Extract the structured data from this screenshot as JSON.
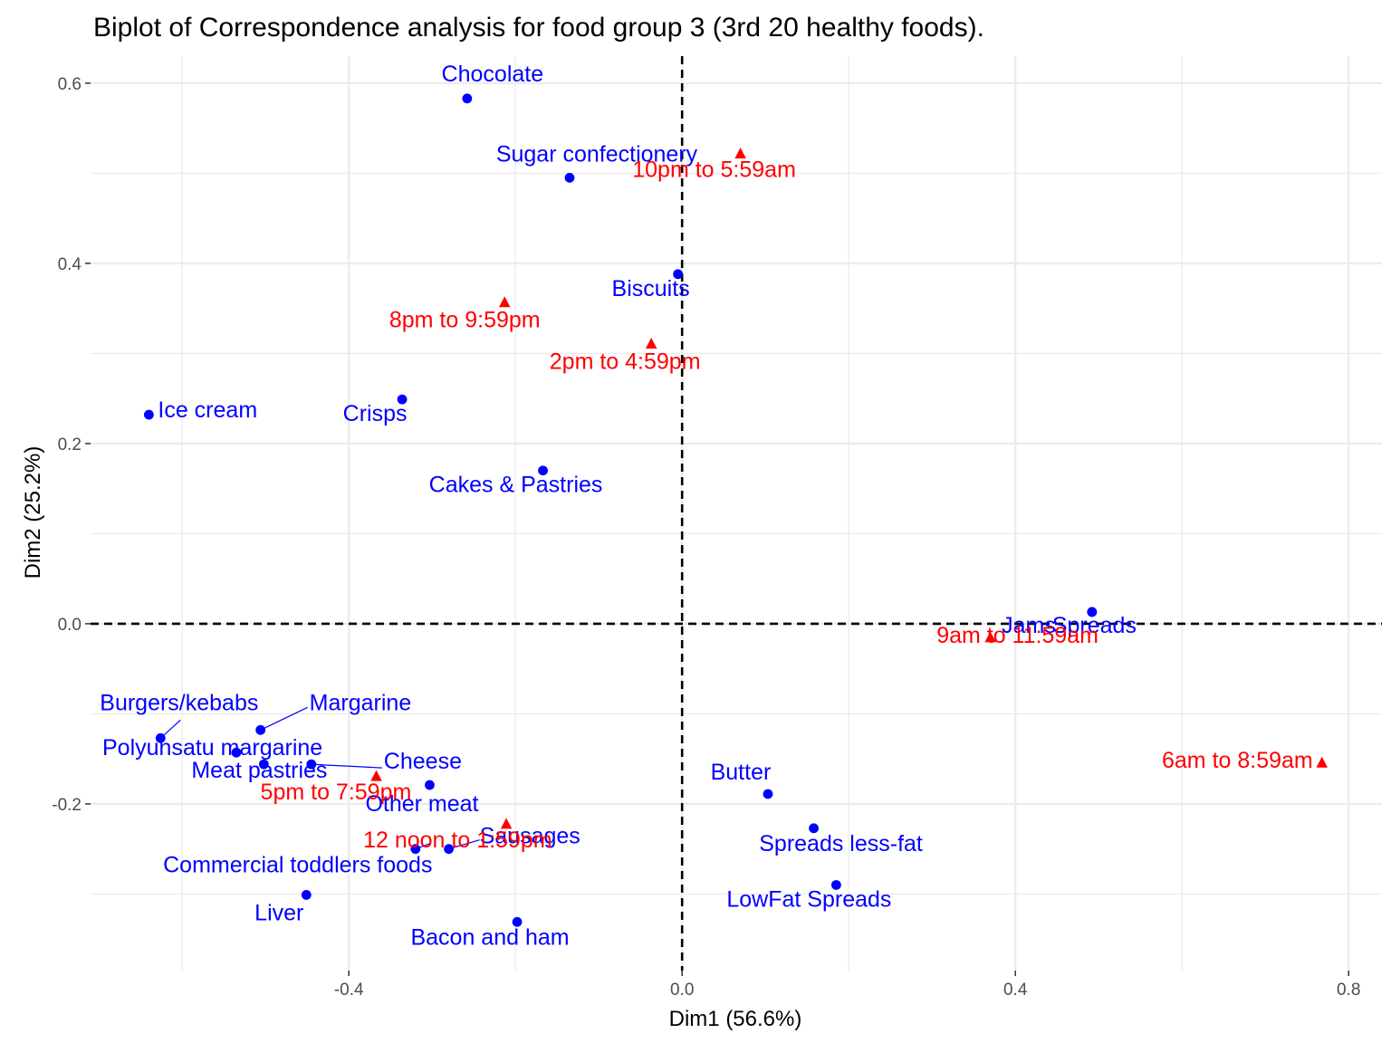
{
  "chart_data": {
    "type": "scatter",
    "title": "Biplot of Correspondence analysis for food group 3 (3rd 20 healthy foods).",
    "xlabel": "Dim1 (56.6%)",
    "ylabel": "Dim2 (25.2%)",
    "xlim": [
      -0.71,
      0.84
    ],
    "ylim": [
      -0.385,
      0.63
    ],
    "x_ticks": [
      {
        "value": -0.4,
        "label": "-0.4"
      },
      {
        "value": 0.0,
        "label": "0.0"
      },
      {
        "value": 0.4,
        "label": "0.4"
      },
      {
        "value": 0.8,
        "label": "0.8"
      }
    ],
    "y_ticks": [
      {
        "value": -0.2,
        "label": "-0.2"
      },
      {
        "value": 0.0,
        "label": "0.0"
      },
      {
        "value": 0.2,
        "label": "0.2"
      },
      {
        "value": 0.4,
        "label": "0.4"
      },
      {
        "value": 0.6,
        "label": "0.6"
      }
    ],
    "grid": true,
    "reference_lines": {
      "x": 0,
      "y": 0,
      "style": "dashed"
    },
    "colors": {
      "rows": "#0000ff",
      "columns": "#ff0000"
    },
    "series": [
      {
        "name": "",
        "marker": "circle",
        "color": "#0000ff",
        "points": [
          {
            "label": "Chocolate",
            "x": -0.258,
            "y": 0.583
          },
          {
            "label": "Sugar confectionery",
            "x": -0.135,
            "y": 0.495
          },
          {
            "label": "Biscuits",
            "x": -0.005,
            "y": 0.388
          },
          {
            "label": "Ice cream",
            "x": -0.64,
            "y": 0.232
          },
          {
            "label": "Crisps",
            "x": -0.336,
            "y": 0.249
          },
          {
            "label": "Cakes & Pastries",
            "x": -0.167,
            "y": 0.17
          },
          {
            "label": "Jams",
            "x": 0.492,
            "y": 0.013
          },
          {
            "label": "Spreads",
            "x": 0.492,
            "y": 0.013
          },
          {
            "label": "Burgers/kebabs",
            "x": -0.626,
            "y": -0.127
          },
          {
            "label": "Margarine",
            "x": -0.506,
            "y": -0.118
          },
          {
            "label": "Polyunsatu margarine",
            "x": -0.535,
            "y": -0.143
          },
          {
            "label": "Meat pastries",
            "x": -0.502,
            "y": -0.156
          },
          {
            "label": "Cheese",
            "x": -0.445,
            "y": -0.156
          },
          {
            "label": "Other meat",
            "x": -0.303,
            "y": -0.179
          },
          {
            "label": "Sausages",
            "x": -0.28,
            "y": -0.25
          },
          {
            "label": "Commercial toddlers foods",
            "x": -0.32,
            "y": -0.25
          },
          {
            "label": "Liver",
            "x": -0.451,
            "y": -0.301
          },
          {
            "label": "Bacon and ham",
            "x": -0.198,
            "y": -0.331
          },
          {
            "label": "Butter",
            "x": 0.103,
            "y": -0.189
          },
          {
            "label": "Spreads less-fat",
            "x": 0.158,
            "y": -0.227
          },
          {
            "label": "LowFat Spreads",
            "x": 0.185,
            "y": -0.29
          }
        ]
      },
      {
        "name": "",
        "marker": "triangle",
        "color": "#ff0000",
        "points": [
          {
            "label": "10pm to 5:59am",
            "x": 0.07,
            "y": 0.521
          },
          {
            "label": "8pm to 9:59pm",
            "x": -0.213,
            "y": 0.356
          },
          {
            "label": "2pm to 4:59pm",
            "x": -0.037,
            "y": 0.31
          },
          {
            "label": "9am to 11:59am",
            "x": 0.37,
            "y": -0.016
          },
          {
            "label": "6am to 8:59am",
            "x": 0.768,
            "y": -0.155
          },
          {
            "label": "5pm to 7:59pm",
            "x": -0.367,
            "y": -0.17
          },
          {
            "label": "12 noon to 1:59pm",
            "x": -0.211,
            "y": -0.223
          }
        ]
      }
    ]
  }
}
